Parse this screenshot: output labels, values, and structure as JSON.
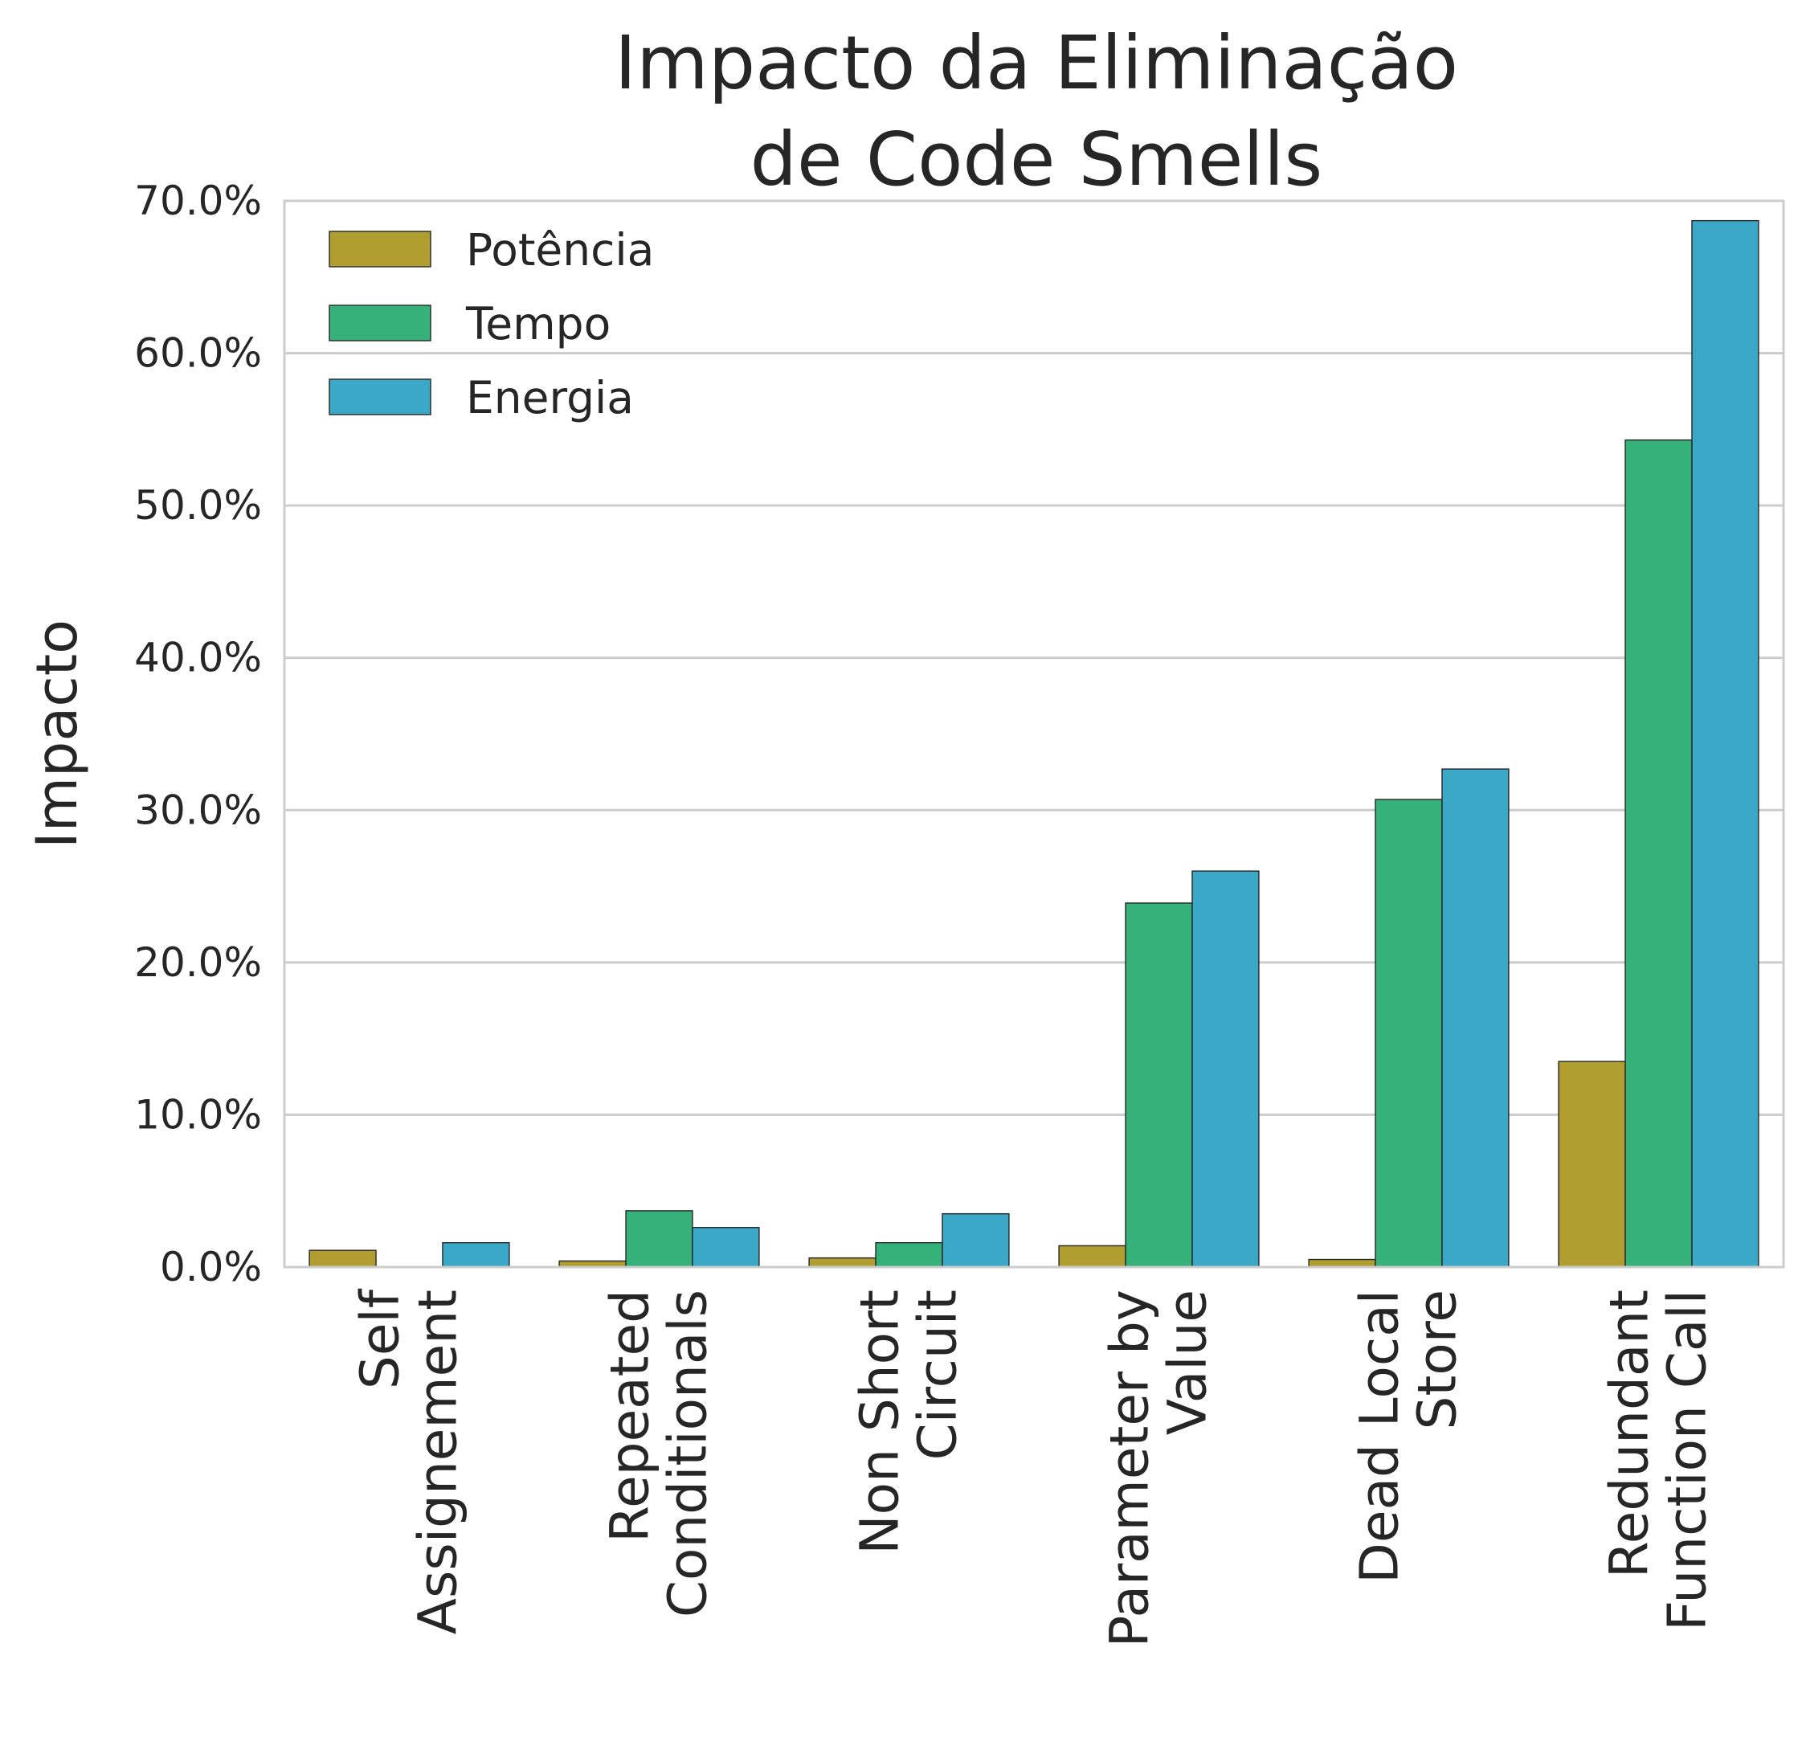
{
  "chart_data": {
    "type": "bar",
    "title": [
      "Impacto da Eliminação",
      "de Code Smells"
    ],
    "xlabel": "",
    "ylabel": "Impacto",
    "ylim": [
      0,
      70
    ],
    "yticks": [
      "0.0%",
      "10.0%",
      "20.0%",
      "30.0%",
      "40.0%",
      "50.0%",
      "60.0%",
      "70.0%"
    ],
    "grid": "horizontal",
    "legend_position": "top-left",
    "categories": [
      [
        "Self",
        "Assignement"
      ],
      [
        "Repeated",
        "Conditionals"
      ],
      [
        "Non Short",
        "Circuit"
      ],
      [
        "Parameter by",
        "Value"
      ],
      [
        "Dead Local",
        "Store"
      ],
      [
        "Redundant",
        "Function Call"
      ]
    ],
    "series": [
      {
        "name": "Potência",
        "color": "#b09e31",
        "values": [
          1.1,
          0.4,
          0.6,
          1.4,
          0.5,
          13.5
        ]
      },
      {
        "name": "Tempo",
        "color": "#36b17a",
        "values": [
          0.0,
          3.7,
          1.6,
          23.9,
          30.7,
          54.3
        ]
      },
      {
        "name": "Energia",
        "color": "#3aa8c6",
        "values": [
          1.6,
          2.6,
          3.5,
          26.0,
          32.7,
          68.7
        ]
      }
    ]
  }
}
